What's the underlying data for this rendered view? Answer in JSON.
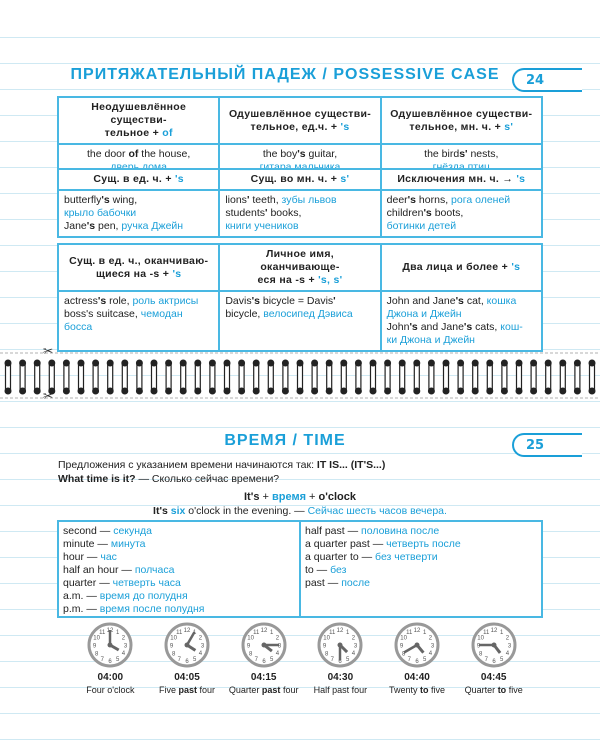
{
  "section1": {
    "title": "ПРИТЯЖАТЕЛЬНЫЙ ПАДЕЖ / POSSESSIVE CASE",
    "page_number": "24",
    "tables": [
      {
        "headers": [
          [
            [
              "Неодушевлённое существи-\nтельное + ",
              ""
            ],
            [
              "of",
              "c"
            ]
          ],
          [
            [
              "Одушевлённое существи-\nтельное, ед.ч. + ",
              ""
            ],
            [
              "'s",
              "c"
            ]
          ],
          [
            [
              "Одушевлённое существи-\nтельное, мн. ч. + ",
              ""
            ],
            [
              "s'",
              "c"
            ]
          ]
        ],
        "cells": [
          [
            [
              "the door ",
              ""
            ],
            [
              "of",
              "b"
            ],
            [
              " the house,\n",
              ""
            ],
            [
              "дверь дома",
              "c"
            ]
          ],
          [
            [
              "the boy",
              ""
            ],
            [
              "'s",
              "b"
            ],
            [
              " guitar,\n",
              ""
            ],
            [
              "гитара мальчика",
              "c"
            ]
          ],
          [
            [
              "the bird",
              ""
            ],
            [
              "s'",
              "b"
            ],
            [
              " nests,\n",
              ""
            ],
            [
              "гнёзда птиц",
              "c"
            ]
          ]
        ]
      },
      {
        "headers": [
          [
            [
              "Сущ. в ед. ч. + ",
              ""
            ],
            [
              "'s",
              "c"
            ]
          ],
          [
            [
              "Сущ. во мн. ч. + ",
              ""
            ],
            [
              "s'",
              "c"
            ]
          ],
          [
            [
              "Исключения мн. ч. → ",
              ""
            ],
            [
              "'s",
              "c"
            ]
          ]
        ],
        "cells": [
          [
            [
              "butterfly",
              ""
            ],
            [
              "'s",
              "b"
            ],
            [
              " wing,\n",
              ""
            ],
            [
              "крыло бабочки",
              "c"
            ],
            [
              "\nJane",
              ""
            ],
            [
              "'s",
              "b"
            ],
            [
              " pen, ",
              ""
            ],
            [
              "ручка Джейн",
              "c"
            ]
          ],
          [
            [
              "lions",
              ""
            ],
            [
              "'",
              "b"
            ],
            [
              " teeth, ",
              ""
            ],
            [
              "зубы львов",
              "c"
            ],
            [
              "\nstudents",
              ""
            ],
            [
              "'",
              "b"
            ],
            [
              " books,\n",
              ""
            ],
            [
              "книги учеников",
              "c"
            ]
          ],
          [
            [
              "deer",
              ""
            ],
            [
              "'s",
              "b"
            ],
            [
              " horns, ",
              ""
            ],
            [
              "рога оленей",
              "c"
            ],
            [
              "\nchildren",
              ""
            ],
            [
              "'s",
              "b"
            ],
            [
              " boots,\n",
              ""
            ],
            [
              "ботинки детей",
              "c"
            ]
          ]
        ]
      },
      {
        "headers": [
          [
            [
              "Сущ. в ед. ч., оканчиваю-\nщиеся на -s + ",
              ""
            ],
            [
              "'s",
              "c"
            ]
          ],
          [
            [
              "Личное имя, оканчивающе-\nеся на -s + ",
              ""
            ],
            [
              "'s, s'",
              "c"
            ]
          ],
          [
            [
              "Два лица и более + ",
              ""
            ],
            [
              "'s",
              "c"
            ]
          ]
        ],
        "cells": [
          [
            [
              "actress",
              ""
            ],
            [
              "'s",
              "b"
            ],
            [
              " role, ",
              ""
            ],
            [
              "роль актрисы",
              "c"
            ],
            [
              "\nboss's suitcase, ",
              ""
            ],
            [
              "чемодан\nбосса",
              "c"
            ]
          ],
          [
            [
              "Davis",
              ""
            ],
            [
              "'s",
              "b"
            ],
            [
              " bicycle = Davis",
              ""
            ],
            [
              "'",
              "b"
            ],
            [
              "\nbicycle, ",
              ""
            ],
            [
              "велосипед Дэвиса",
              "c"
            ]
          ],
          [
            [
              "John and Jane",
              ""
            ],
            [
              "'s",
              "b"
            ],
            [
              " cat, ",
              ""
            ],
            [
              "кошка\nДжона и Джейн",
              "c"
            ],
            [
              "\nJohn",
              ""
            ],
            [
              "'s",
              "b"
            ],
            [
              " and Jane",
              ""
            ],
            [
              "'s",
              "b"
            ],
            [
              " cats, ",
              ""
            ],
            [
              "кош-\nки Джона и Джейн",
              "c"
            ]
          ]
        ]
      }
    ]
  },
  "section2": {
    "title": "ВРЕМЯ / TIME",
    "page_number": "25",
    "intro": [
      [
        "Предложения с указанием времени начинаются так: ",
        ""
      ],
      [
        "IT IS... (IT'S...)",
        "b"
      ],
      [
        "\n",
        ""
      ],
      [
        "What time is it?",
        "b"
      ],
      [
        " — Сколько сейчас времени?",
        ""
      ]
    ],
    "formula": [
      [
        "It's",
        "b"
      ],
      [
        " + ",
        ""
      ],
      [
        "время",
        "bc"
      ],
      [
        " + ",
        ""
      ],
      [
        "o'clock",
        "b"
      ]
    ],
    "example": [
      [
        "It's",
        "b"
      ],
      [
        " ",
        ""
      ],
      [
        "six",
        "bc"
      ],
      [
        " o'clock in the evening. — ",
        ""
      ],
      [
        "Сейчас шесть часов вечера.",
        "c"
      ]
    ],
    "vocab_left": [
      [
        "second",
        "секунда"
      ],
      [
        "minute",
        "минута"
      ],
      [
        "hour",
        "час"
      ],
      [
        "half an hour",
        "полчаса"
      ],
      [
        "quarter",
        "четверть часа"
      ],
      [
        "a.m.",
        "время до полудня"
      ],
      [
        "p.m.",
        "время после полудня"
      ]
    ],
    "vocab_right": [
      [
        "half past",
        "половина после"
      ],
      [
        "a quarter past",
        "четверть после"
      ],
      [
        "a quarter to",
        "без четверти"
      ],
      [
        "to",
        "без"
      ],
      [
        "past",
        "после"
      ]
    ],
    "clocks": [
      {
        "time": "04:00",
        "caption": [
          [
            "Four o'clock",
            ""
          ]
        ]
      },
      {
        "time": "04:05",
        "caption": [
          [
            "Five ",
            ""
          ],
          [
            "past",
            "b"
          ],
          [
            " four",
            ""
          ]
        ]
      },
      {
        "time": "04:15",
        "caption": [
          [
            "Quarter ",
            ""
          ],
          [
            "past",
            "b"
          ],
          [
            " four",
            ""
          ]
        ]
      },
      {
        "time": "04:30",
        "caption": [
          [
            "Half past four",
            ""
          ]
        ]
      },
      {
        "time": "04:40",
        "caption": [
          [
            "Twenty ",
            ""
          ],
          [
            "to",
            "b"
          ],
          [
            " five",
            ""
          ]
        ]
      },
      {
        "time": "04:45",
        "caption": [
          [
            "Quarter ",
            ""
          ],
          [
            "to",
            "b"
          ],
          [
            " five",
            ""
          ]
        ]
      }
    ]
  },
  "colors": {
    "accent": "#1a9fd8",
    "border": "#49b8e3",
    "ruled_line": "#cfe9f3"
  }
}
